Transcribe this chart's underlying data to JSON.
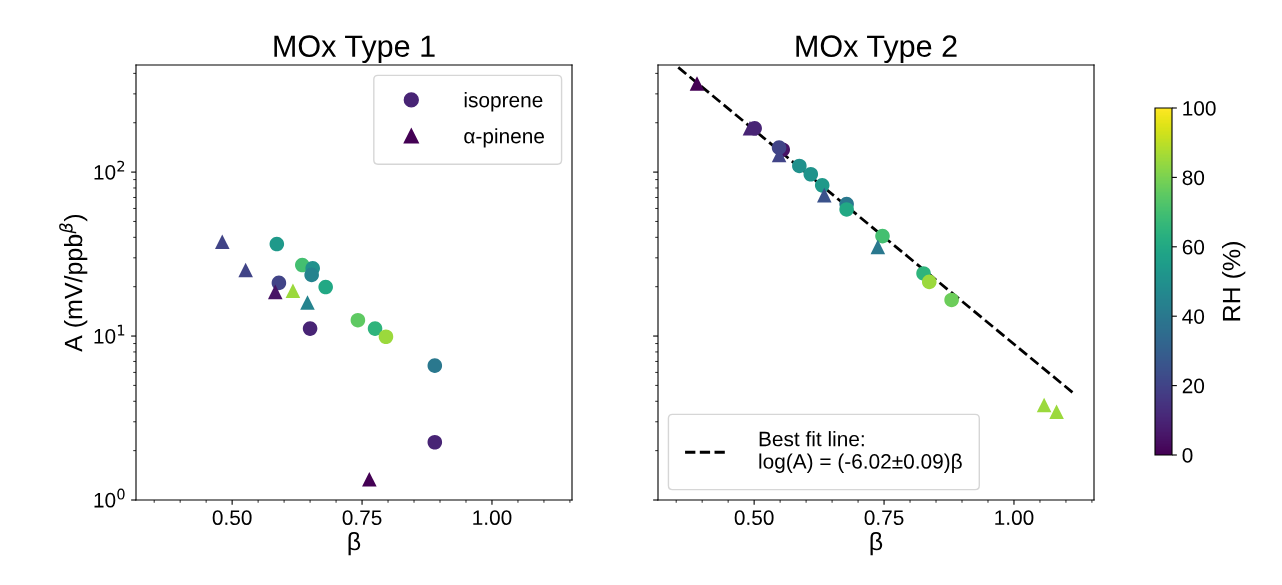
{
  "chart_data": [
    {
      "type": "scatter",
      "title": "MOx Type 1",
      "xlabel": "β",
      "ylabel": "A (mV/ppb$^{β}$)",
      "log": "y",
      "xlim": [
        0.315,
        1.154
      ],
      "xticks": [
        {
          "value": 0.5,
          "label": "0.50"
        },
        {
          "value": 0.75,
          "label": "0.75"
        },
        {
          "value": 1.0,
          "label": "1.00"
        }
      ],
      "ylim": [
        1,
        450
      ],
      "yticks": [
        {
          "value": 1,
          "label": "10$^{0}$"
        },
        {
          "value": 10,
          "label": "10$^{1}$"
        },
        {
          "value": 100,
          "label": "10$^{2}$"
        }
      ],
      "legend": "top right",
      "series": [
        {
          "name": "isoprene",
          "marker": "circle",
          "x": [
            0.89,
            0.586,
            0.59,
            0.635,
            0.655,
            0.653,
            0.68,
            0.65,
            0.742,
            0.775,
            0.796,
            0.89
          ],
          "values": [
            2.25,
            36.4,
            21.1,
            27.1,
            25.9,
            23.6,
            19.9,
            11.1,
            12.5,
            11.1,
            9.9,
            6.6
          ],
          "colors": [
            "#482475",
            "#1f998a",
            "#414487",
            "#44bf70",
            "#21918c",
            "#25838e",
            "#22a884",
            "#482475",
            "#5ec962",
            "#2fb47c",
            "#9bd93c",
            "#2a788e"
          ]
        },
        {
          "name": "α-pinene",
          "marker": "triangle",
          "x": [
            0.764,
            0.481,
            0.526,
            0.583,
            0.617,
            0.645
          ],
          "values": [
            1.34,
            37.6,
            25.3,
            18.6,
            18.9,
            16.0
          ],
          "colors": [
            "#440154",
            "#414487",
            "#414487",
            "#471365",
            "#9bd93c",
            "#25838e"
          ]
        }
      ]
    },
    {
      "type": "scatter",
      "title": "MOx Type 2",
      "xlabel": "β",
      "log": "y",
      "tick_labels": "x",
      "xlim": [
        0.315,
        1.154
      ],
      "xticks": [
        {
          "value": 0.5,
          "label": "0.50"
        },
        {
          "value": 0.75,
          "label": "0.75"
        },
        {
          "value": 1.0,
          "label": "1.00"
        }
      ],
      "ylim": [
        1,
        450
      ],
      "yticks": [
        {
          "value": 1,
          "label": null
        },
        {
          "value": 10,
          "label": null
        },
        {
          "value": 100,
          "label": null
        }
      ],
      "legend": "bottom left",
      "clabel": "RH (%)",
      "clim": [
        0,
        100
      ],
      "cticks": [
        0,
        20,
        40,
        60,
        80,
        100
      ],
      "series": [
        {
          "marker": "circle",
          "x": [
            0.501,
            0.555,
            0.548,
            0.587,
            0.609,
            0.631,
            0.678,
            0.678,
            0.747,
            0.826,
            0.837,
            0.88
          ],
          "values": [
            185,
            137,
            141,
            109,
            97,
            83,
            63.8,
            59.2,
            40.7,
            24.1,
            21.4,
            16.6
          ],
          "colors": [
            "#482475",
            "#471365",
            "#414487",
            "#21918c",
            "#1f938b",
            "#1f998a",
            "#2a788e",
            "#22a884",
            "#44bf70",
            "#2fb47c",
            "#9bd93c",
            "#6ccd5a"
          ]
        },
        {
          "marker": "triangle",
          "x": [
            0.39,
            0.492,
            0.548,
            0.635,
            0.738,
            1.058,
            1.082
          ],
          "values": [
            347,
            185,
            127,
            72.4,
            35,
            3.8,
            3.45
          ],
          "colors": [
            "#440154",
            "#482475",
            "#414487",
            "#3b528b",
            "#2a788e",
            "#9bd93c",
            "#9bd93c"
          ]
        },
        {
          "type": "line",
          "name": "Best fit line:\nlog(A) = (-6.02±0.09)β",
          "line_style": "dashed",
          "color": "#000000",
          "x": [
            0.354,
            1.115
          ],
          "values": [
            435,
            4.47
          ]
        }
      ]
    }
  ]
}
